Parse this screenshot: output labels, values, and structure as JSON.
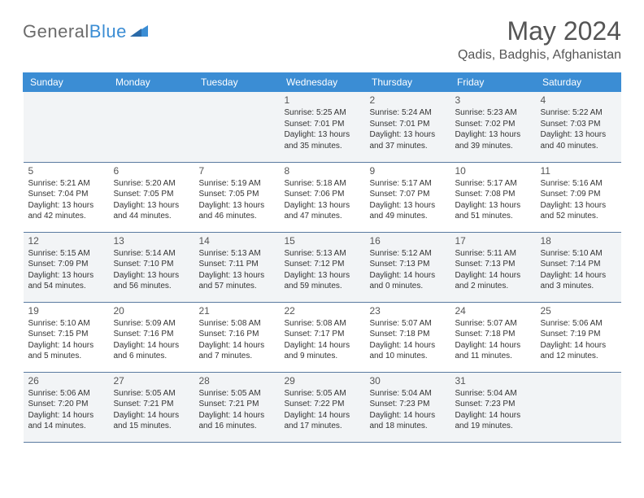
{
  "logo": {
    "text_gray": "General",
    "text_blue": "Blue"
  },
  "header": {
    "title": "May 2024",
    "location": "Qadis, Badghis, Afghanistan"
  },
  "dayNames": [
    "Sunday",
    "Monday",
    "Tuesday",
    "Wednesday",
    "Thursday",
    "Friday",
    "Saturday"
  ],
  "colors": {
    "headerBg": "#3b8dd4",
    "headerText": "#ffffff",
    "altRow": "#f2f4f6",
    "border": "#5a7aa0"
  },
  "weeks": [
    [
      null,
      null,
      null,
      {
        "n": "1",
        "sr": "5:25 AM",
        "ss": "7:01 PM",
        "dl": "13 hours and 35 minutes."
      },
      {
        "n": "2",
        "sr": "5:24 AM",
        "ss": "7:01 PM",
        "dl": "13 hours and 37 minutes."
      },
      {
        "n": "3",
        "sr": "5:23 AM",
        "ss": "7:02 PM",
        "dl": "13 hours and 39 minutes."
      },
      {
        "n": "4",
        "sr": "5:22 AM",
        "ss": "7:03 PM",
        "dl": "13 hours and 40 minutes."
      }
    ],
    [
      {
        "n": "5",
        "sr": "5:21 AM",
        "ss": "7:04 PM",
        "dl": "13 hours and 42 minutes."
      },
      {
        "n": "6",
        "sr": "5:20 AM",
        "ss": "7:05 PM",
        "dl": "13 hours and 44 minutes."
      },
      {
        "n": "7",
        "sr": "5:19 AM",
        "ss": "7:05 PM",
        "dl": "13 hours and 46 minutes."
      },
      {
        "n": "8",
        "sr": "5:18 AM",
        "ss": "7:06 PM",
        "dl": "13 hours and 47 minutes."
      },
      {
        "n": "9",
        "sr": "5:17 AM",
        "ss": "7:07 PM",
        "dl": "13 hours and 49 minutes."
      },
      {
        "n": "10",
        "sr": "5:17 AM",
        "ss": "7:08 PM",
        "dl": "13 hours and 51 minutes."
      },
      {
        "n": "11",
        "sr": "5:16 AM",
        "ss": "7:09 PM",
        "dl": "13 hours and 52 minutes."
      }
    ],
    [
      {
        "n": "12",
        "sr": "5:15 AM",
        "ss": "7:09 PM",
        "dl": "13 hours and 54 minutes."
      },
      {
        "n": "13",
        "sr": "5:14 AM",
        "ss": "7:10 PM",
        "dl": "13 hours and 56 minutes."
      },
      {
        "n": "14",
        "sr": "5:13 AM",
        "ss": "7:11 PM",
        "dl": "13 hours and 57 minutes."
      },
      {
        "n": "15",
        "sr": "5:13 AM",
        "ss": "7:12 PM",
        "dl": "13 hours and 59 minutes."
      },
      {
        "n": "16",
        "sr": "5:12 AM",
        "ss": "7:13 PM",
        "dl": "14 hours and 0 minutes."
      },
      {
        "n": "17",
        "sr": "5:11 AM",
        "ss": "7:13 PM",
        "dl": "14 hours and 2 minutes."
      },
      {
        "n": "18",
        "sr": "5:10 AM",
        "ss": "7:14 PM",
        "dl": "14 hours and 3 minutes."
      }
    ],
    [
      {
        "n": "19",
        "sr": "5:10 AM",
        "ss": "7:15 PM",
        "dl": "14 hours and 5 minutes."
      },
      {
        "n": "20",
        "sr": "5:09 AM",
        "ss": "7:16 PM",
        "dl": "14 hours and 6 minutes."
      },
      {
        "n": "21",
        "sr": "5:08 AM",
        "ss": "7:16 PM",
        "dl": "14 hours and 7 minutes."
      },
      {
        "n": "22",
        "sr": "5:08 AM",
        "ss": "7:17 PM",
        "dl": "14 hours and 9 minutes."
      },
      {
        "n": "23",
        "sr": "5:07 AM",
        "ss": "7:18 PM",
        "dl": "14 hours and 10 minutes."
      },
      {
        "n": "24",
        "sr": "5:07 AM",
        "ss": "7:18 PM",
        "dl": "14 hours and 11 minutes."
      },
      {
        "n": "25",
        "sr": "5:06 AM",
        "ss": "7:19 PM",
        "dl": "14 hours and 12 minutes."
      }
    ],
    [
      {
        "n": "26",
        "sr": "5:06 AM",
        "ss": "7:20 PM",
        "dl": "14 hours and 14 minutes."
      },
      {
        "n": "27",
        "sr": "5:05 AM",
        "ss": "7:21 PM",
        "dl": "14 hours and 15 minutes."
      },
      {
        "n": "28",
        "sr": "5:05 AM",
        "ss": "7:21 PM",
        "dl": "14 hours and 16 minutes."
      },
      {
        "n": "29",
        "sr": "5:05 AM",
        "ss": "7:22 PM",
        "dl": "14 hours and 17 minutes."
      },
      {
        "n": "30",
        "sr": "5:04 AM",
        "ss": "7:23 PM",
        "dl": "14 hours and 18 minutes."
      },
      {
        "n": "31",
        "sr": "5:04 AM",
        "ss": "7:23 PM",
        "dl": "14 hours and 19 minutes."
      },
      null
    ]
  ],
  "labels": {
    "sunrise": "Sunrise: ",
    "sunset": "Sunset: ",
    "daylight": "Daylight: "
  }
}
